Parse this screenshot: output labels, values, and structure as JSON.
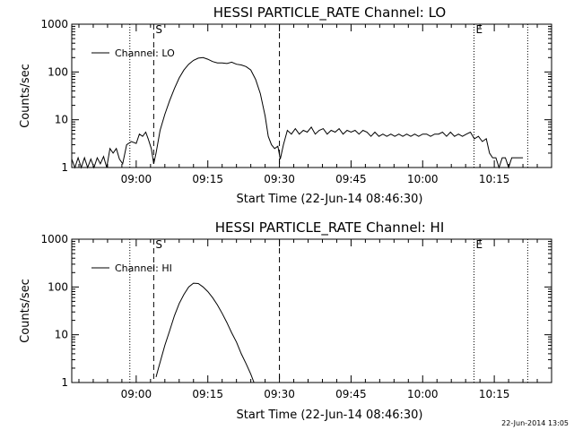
{
  "chart_data": [
    {
      "type": "line",
      "title": "HESSI PARTICLE_RATE Channel: LO",
      "xlabel": "Start Time (22-Jun-14 08:46:30)",
      "ylabel": "Counts/sec",
      "y_scale": "log",
      "ylim": [
        1,
        1000
      ],
      "xlim": [
        "08:46:30",
        "10:27:00"
      ],
      "x_ticks": [
        "09:00",
        "09:15",
        "09:30",
        "09:45",
        "10:00",
        "10:15"
      ],
      "y_ticks": [
        "1",
        "10",
        "100",
        "1000"
      ],
      "legend": {
        "entries": [
          "Channel: LO"
        ],
        "placement": "top-left"
      },
      "grid": false,
      "markers": [
        {
          "time": "08:58:40",
          "style": "dotted",
          "label": ""
        },
        {
          "time": "09:03:40",
          "style": "dashed",
          "label": "S"
        },
        {
          "time": "09:30:00",
          "style": "dashed",
          "label": ""
        },
        {
          "time": "10:10:45",
          "style": "dotted",
          "label": "E"
        },
        {
          "time": "10:22:00",
          "style": "dotted",
          "label": ""
        }
      ],
      "series": [
        {
          "name": "Channel: LO",
          "points": [
            [
              "08:46:30",
              1.5
            ],
            [
              "08:47:10",
              1
            ],
            [
              "08:47:50",
              1.6
            ],
            [
              "08:48:30",
              1
            ],
            [
              "08:49:10",
              1.6
            ],
            [
              "08:49:50",
              1
            ],
            [
              "08:50:30",
              1.5
            ],
            [
              "08:51:10",
              1
            ],
            [
              "08:51:50",
              1.6
            ],
            [
              "08:52:30",
              1.2
            ],
            [
              "08:53:10",
              1.7
            ],
            [
              "08:53:50",
              1
            ],
            [
              "08:54:30",
              2.5
            ],
            [
              "08:55:10",
              2
            ],
            [
              "08:55:50",
              2.5
            ],
            [
              "08:56:30",
              1.5
            ],
            [
              "08:57:10",
              1.2
            ],
            [
              "08:58:00",
              3
            ],
            [
              "08:59:00",
              3.5
            ],
            [
              "09:00:00",
              3.2
            ],
            [
              "09:00:40",
              5
            ],
            [
              "09:01:20",
              4.5
            ],
            [
              "09:02:00",
              5.5
            ],
            [
              "09:02:30",
              4
            ],
            [
              "09:03:10",
              2.5
            ],
            [
              "09:03:40",
              1.2
            ],
            [
              "09:04:10",
              2
            ],
            [
              "09:05:00",
              6
            ],
            [
              "09:06:00",
              13
            ],
            [
              "09:07:00",
              25
            ],
            [
              "09:08:00",
              45
            ],
            [
              "09:09:00",
              75
            ],
            [
              "09:10:00",
              110
            ],
            [
              "09:11:00",
              145
            ],
            [
              "09:12:00",
              175
            ],
            [
              "09:13:00",
              195
            ],
            [
              "09:14:00",
              200
            ],
            [
              "09:15:00",
              185
            ],
            [
              "09:16:00",
              165
            ],
            [
              "09:17:00",
              155
            ],
            [
              "09:18:00",
              155
            ],
            [
              "09:19:00",
              150
            ],
            [
              "09:20:00",
              160
            ],
            [
              "09:21:00",
              145
            ],
            [
              "09:22:00",
              140
            ],
            [
              "09:23:00",
              130
            ],
            [
              "09:24:00",
              110
            ],
            [
              "09:25:00",
              70
            ],
            [
              "09:26:00",
              35
            ],
            [
              "09:27:00",
              12
            ],
            [
              "09:27:40",
              4.5
            ],
            [
              "09:28:20",
              3
            ],
            [
              "09:29:00",
              2.5
            ],
            [
              "09:29:40",
              2.8
            ],
            [
              "09:30:10",
              1.5
            ],
            [
              "09:30:50",
              3
            ],
            [
              "09:31:40",
              6
            ],
            [
              "09:32:30",
              5
            ],
            [
              "09:33:20",
              6.5
            ],
            [
              "09:34:10",
              5
            ],
            [
              "09:35:00",
              6
            ],
            [
              "09:35:50",
              5.5
            ],
            [
              "09:36:40",
              7
            ],
            [
              "09:37:30",
              5
            ],
            [
              "09:38:20",
              6
            ],
            [
              "09:39:10",
              6.5
            ],
            [
              "09:40:00",
              5
            ],
            [
              "09:40:50",
              6
            ],
            [
              "09:41:40",
              5.5
            ],
            [
              "09:42:30",
              6.5
            ],
            [
              "09:43:20",
              5
            ],
            [
              "09:44:10",
              6
            ],
            [
              "09:45:00",
              5.5
            ],
            [
              "09:45:50",
              6
            ],
            [
              "09:46:40",
              5
            ],
            [
              "09:47:30",
              6
            ],
            [
              "09:48:20",
              5.5
            ],
            [
              "09:49:10",
              4.5
            ],
            [
              "09:50:00",
              5.5
            ],
            [
              "09:50:50",
              4.5
            ],
            [
              "09:51:40",
              5
            ],
            [
              "09:52:30",
              4.5
            ],
            [
              "09:53:20",
              5
            ],
            [
              "09:54:10",
              4.5
            ],
            [
              "09:55:00",
              5
            ],
            [
              "09:55:50",
              4.5
            ],
            [
              "09:56:40",
              5
            ],
            [
              "09:57:30",
              4.5
            ],
            [
              "09:58:20",
              5
            ],
            [
              "09:59:10",
              4.5
            ],
            [
              "10:00:00",
              5
            ],
            [
              "10:00:50",
              5
            ],
            [
              "10:01:40",
              4.5
            ],
            [
              "10:02:30",
              5
            ],
            [
              "10:03:20",
              5
            ],
            [
              "10:04:10",
              5.5
            ],
            [
              "10:05:00",
              4.5
            ],
            [
              "10:05:50",
              5.5
            ],
            [
              "10:06:40",
              4.5
            ],
            [
              "10:07:30",
              5
            ],
            [
              "10:08:20",
              4.5
            ],
            [
              "10:09:10",
              5
            ],
            [
              "10:10:00",
              5.5
            ],
            [
              "10:10:50",
              4
            ],
            [
              "10:11:40",
              4.5
            ],
            [
              "10:12:30",
              3.5
            ],
            [
              "10:13:20",
              4
            ],
            [
              "10:14:00",
              2
            ],
            [
              "10:14:40",
              1.6
            ],
            [
              "10:15:20",
              1.6
            ],
            [
              "10:16:00",
              1
            ],
            [
              "10:16:40",
              1.6
            ],
            [
              "10:17:20",
              1.6
            ],
            [
              "10:18:00",
              1
            ],
            [
              "10:18:40",
              1.6
            ],
            [
              "10:19:20",
              1.6
            ],
            [
              "10:21:00",
              1.6
            ]
          ]
        }
      ]
    },
    {
      "type": "line",
      "title": "HESSI PARTICLE_RATE Channel: HI",
      "xlabel": "Start Time (22-Jun-14 08:46:30)",
      "ylabel": "Counts/sec",
      "y_scale": "log",
      "ylim": [
        1,
        1000
      ],
      "xlim": [
        "08:46:30",
        "10:27:00"
      ],
      "x_ticks": [
        "09:00",
        "09:15",
        "09:30",
        "09:45",
        "10:00",
        "10:15"
      ],
      "y_ticks": [
        "1",
        "10",
        "100",
        "1000"
      ],
      "legend": {
        "entries": [
          "Channel: HI"
        ],
        "placement": "top-left"
      },
      "grid": false,
      "markers": [
        {
          "time": "08:58:40",
          "style": "dotted",
          "label": ""
        },
        {
          "time": "09:03:40",
          "style": "dashed",
          "label": "S"
        },
        {
          "time": "09:30:00",
          "style": "dashed",
          "label": ""
        },
        {
          "time": "10:10:45",
          "style": "dotted",
          "label": "E"
        },
        {
          "time": "10:22:00",
          "style": "dotted",
          "label": ""
        }
      ],
      "series": [
        {
          "name": "Channel: HI",
          "points": [
            [
              "09:04:10",
              1.3
            ],
            [
              "09:04:40",
              2
            ],
            [
              "09:05:20",
              3.5
            ],
            [
              "09:06:00",
              6
            ],
            [
              "09:07:00",
              12
            ],
            [
              "09:08:00",
              25
            ],
            [
              "09:09:00",
              45
            ],
            [
              "09:10:00",
              70
            ],
            [
              "09:11:00",
              100
            ],
            [
              "09:12:00",
              120
            ],
            [
              "09:13:00",
              118
            ],
            [
              "09:14:00",
              100
            ],
            [
              "09:15:00",
              80
            ],
            [
              "09:16:00",
              60
            ],
            [
              "09:17:00",
              42
            ],
            [
              "09:18:00",
              28
            ],
            [
              "09:19:00",
              18
            ],
            [
              "09:20:00",
              11
            ],
            [
              "09:21:00",
              7
            ],
            [
              "09:22:00",
              4
            ],
            [
              "09:23:00",
              2.5
            ],
            [
              "09:24:00",
              1.5
            ],
            [
              "09:24:40",
              1
            ]
          ]
        }
      ]
    }
  ],
  "footer": {
    "timestamp": "22-Jun-2014 13:05"
  }
}
